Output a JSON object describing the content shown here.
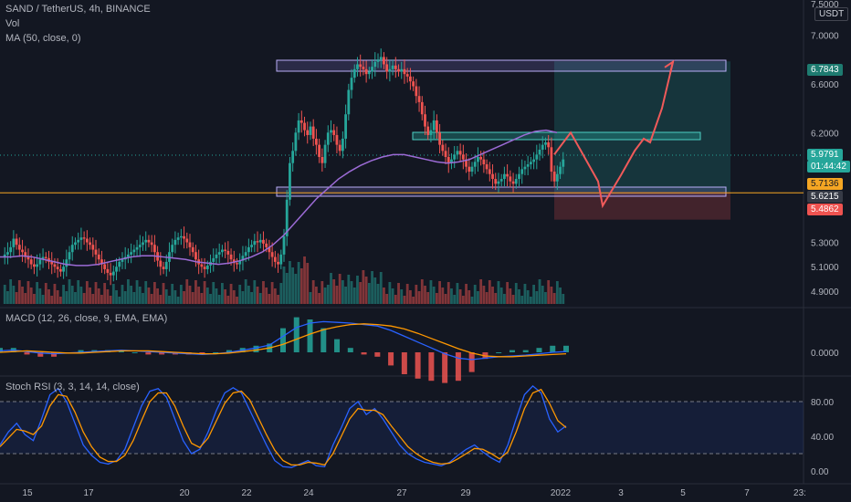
{
  "header": {
    "symbol_line": "SAND / TetherUS, 4h, BINANCE",
    "vol": "Vol",
    "ma": "MA (50, close, 0)",
    "macd": "MACD (12, 26, close, 9, EMA, EMA)",
    "stoch": "Stoch RSI (3, 3, 14, 14, close)"
  },
  "currency": "USDT",
  "price_tags": {
    "target": "6.7843",
    "current": "5.9791",
    "countdown": "01:44:42",
    "entry": "5.7136",
    "gray": "5.6215",
    "stop": "5.4862",
    "macd_zero": "0.0000"
  },
  "colors": {
    "bg": "#131722",
    "up": "#26a69a",
    "down": "#ef5350",
    "ma": "#9c6bd6",
    "macd": "#2962ff",
    "signal": "#ff9800",
    "zone": "#9c8cf2",
    "entry_line": "#f5a623"
  },
  "chart_data": [
    {
      "type": "line",
      "name": "price-axis",
      "yticks": [
        "7.0000",
        "6.6000",
        "6.2000",
        "5.3000",
        "5.1000",
        "4.9000"
      ],
      "xticks": [
        "15",
        "17",
        "20",
        "22",
        "24",
        "27",
        "29",
        "2022",
        "3",
        "5",
        "7",
        "23:"
      ],
      "top_tick": "7.5000",
      "ylim": [
        4.78,
        7.25
      ],
      "price_path": [
        5.18,
        5.2,
        5.22,
        5.26,
        5.33,
        5.28,
        5.24,
        5.22,
        5.18,
        5.16,
        5.12,
        5.1,
        5.12,
        5.16,
        5.18,
        5.17,
        5.14,
        5.12,
        5.1,
        5.08,
        5.06,
        5.1,
        5.16,
        5.22,
        5.28,
        5.3,
        5.32,
        5.34,
        5.33,
        5.3,
        5.28,
        5.24,
        5.2,
        5.16,
        5.12,
        5.08,
        5.05,
        5.03,
        5.06,
        5.1,
        5.14,
        5.16,
        5.18,
        5.2,
        5.22,
        5.24,
        5.26,
        5.28,
        5.3,
        5.32,
        5.3,
        5.28,
        5.22,
        5.15,
        5.1,
        5.08,
        5.14,
        5.22,
        5.28,
        5.32,
        5.34,
        5.35,
        5.33,
        5.3,
        5.26,
        5.22,
        5.16,
        5.12,
        5.1,
        5.08,
        5.11,
        5.14,
        5.17,
        5.2,
        5.22,
        5.24,
        5.23,
        5.2,
        5.16,
        5.13,
        5.12,
        5.15,
        5.19,
        5.22,
        5.26,
        5.28,
        5.31,
        5.3,
        5.32,
        5.29,
        5.26,
        5.22,
        5.18,
        5.14,
        5.12,
        5.2,
        5.35,
        5.65,
        5.95,
        6.05,
        6.2,
        6.3,
        6.28,
        6.22,
        6.18,
        6.25,
        6.15,
        6.1,
        6.0,
        5.95,
        6.1,
        6.2,
        6.22,
        6.18,
        6.1,
        6.05,
        6.15,
        6.35,
        6.55,
        6.65,
        6.72,
        6.76,
        6.74,
        6.72,
        6.68,
        6.7,
        6.74,
        6.78,
        6.8,
        6.82,
        6.76,
        6.7,
        6.72,
        6.75,
        6.72,
        6.7,
        6.72,
        6.68,
        6.66,
        6.62,
        6.58,
        6.5,
        6.45,
        6.35,
        6.25,
        6.18,
        6.22,
        6.3,
        6.2,
        6.1,
        6.05,
        6.0,
        5.95,
        5.98,
        6.02,
        6.05,
        6.02,
        5.98,
        5.92,
        5.88,
        5.92,
        5.96,
        6.0,
        5.98,
        5.94,
        5.9,
        5.86,
        5.82,
        5.78,
        5.8,
        5.82,
        5.86,
        5.84,
        5.8,
        5.78,
        5.82,
        5.86,
        5.9,
        5.92,
        5.94,
        5.96,
        5.98,
        6.02,
        6.06,
        6.1,
        6.12,
        6.08,
        5.88,
        5.8,
        5.86,
        5.92,
        5.98
      ],
      "ma50": [
        5.18,
        5.18,
        5.19,
        5.18,
        5.16,
        5.14,
        5.12,
        5.11,
        5.11,
        5.12,
        5.14,
        5.16,
        5.18,
        5.19,
        5.19,
        5.18,
        5.17,
        5.16,
        5.14,
        5.13,
        5.12,
        5.13,
        5.15,
        5.18,
        5.22,
        5.28,
        5.36,
        5.46,
        5.56,
        5.66,
        5.74,
        5.82,
        5.88,
        5.93,
        5.97,
        6.0,
        6.02,
        6.02,
        6.0,
        5.98,
        5.96,
        5.95,
        5.96,
        5.98,
        6.02,
        6.06,
        6.1,
        6.14,
        6.18,
        6.21,
        6.22,
        6.2
      ],
      "projection": [
        6.02,
        6.2,
        6.0,
        5.8,
        5.6,
        5.85,
        6.05,
        6.15,
        6.12,
        6.4,
        6.78
      ],
      "macd_line": [
        0.02,
        0.03,
        0.01,
        -0.01,
        -0.02,
        -0.01,
        0.0,
        0.01,
        0.02,
        0.03,
        0.02,
        0.01,
        0.0,
        -0.01,
        -0.02,
        -0.03,
        -0.02,
        0.0,
        0.03,
        0.06,
        0.1,
        0.22,
        0.34,
        0.4,
        0.42,
        0.41,
        0.4,
        0.38,
        0.36,
        0.3,
        0.22,
        0.14,
        0.06,
        -0.02,
        -0.08,
        -0.1,
        -0.08,
        -0.06,
        -0.05,
        -0.04,
        -0.02,
        0.0,
        0.01
      ],
      "signal_line": [
        0.0,
        0.01,
        0.02,
        0.01,
        0.0,
        -0.01,
        -0.01,
        0.0,
        0.01,
        0.02,
        0.02,
        0.02,
        0.01,
        0.0,
        -0.01,
        -0.02,
        -0.02,
        -0.01,
        0.01,
        0.03,
        0.06,
        0.11,
        0.18,
        0.25,
        0.31,
        0.35,
        0.38,
        0.39,
        0.38,
        0.36,
        0.32,
        0.26,
        0.19,
        0.12,
        0.05,
        -0.01,
        -0.05,
        -0.06,
        -0.06,
        -0.05,
        -0.04,
        -0.03,
        -0.02
      ],
      "macd_ticks": [
        "0.0000"
      ],
      "rsi_ticks": [
        "80.00",
        "40.00",
        "0.00"
      ],
      "stoch_k": [
        30,
        45,
        55,
        42,
        35,
        60,
        88,
        95,
        80,
        55,
        30,
        18,
        10,
        8,
        12,
        25,
        50,
        75,
        92,
        95,
        85,
        60,
        35,
        20,
        25,
        45,
        70,
        90,
        96,
        90,
        70,
        50,
        30,
        12,
        5,
        4,
        8,
        12,
        6,
        5,
        30,
        50,
        72,
        80,
        65,
        72,
        60,
        45,
        30,
        20,
        14,
        10,
        8,
        6,
        10,
        18,
        25,
        30,
        22,
        15,
        10,
        30,
        60,
        88,
        98,
        90,
        60,
        45,
        52
      ],
      "stoch_d": [
        28,
        38,
        48,
        46,
        42,
        52,
        75,
        88,
        86,
        68,
        45,
        28,
        16,
        11,
        11,
        18,
        35,
        58,
        80,
        90,
        90,
        75,
        52,
        32,
        27,
        38,
        58,
        78,
        90,
        92,
        82,
        62,
        42,
        24,
        12,
        7,
        7,
        10,
        9,
        7,
        20,
        40,
        60,
        72,
        70,
        70,
        65,
        52,
        40,
        28,
        20,
        14,
        10,
        8,
        9,
        14,
        20,
        26,
        25,
        20,
        14,
        22,
        45,
        72,
        90,
        94,
        78,
        58,
        50
      ]
    }
  ]
}
